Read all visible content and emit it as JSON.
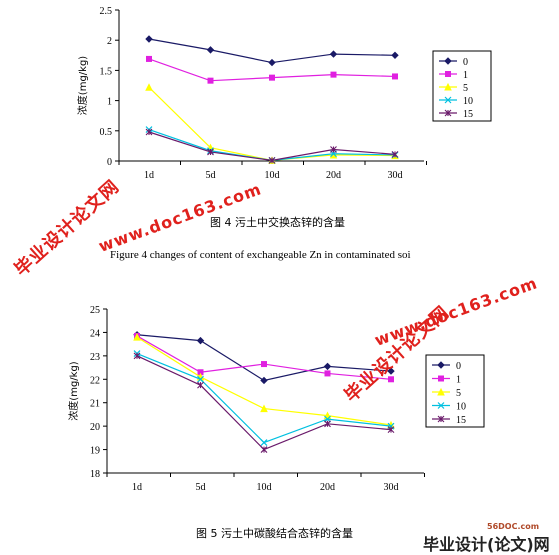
{
  "chart_data": [
    {
      "type": "line",
      "categories": [
        "1d",
        "5d",
        "10d",
        "20d",
        "30d"
      ],
      "ylabel": "浓度(mg/kg)",
      "ylim": [
        0,
        2.5
      ],
      "yticks": [
        "0",
        "0.5",
        "1",
        "1.5",
        "2",
        "2.5"
      ],
      "legend_position": "right",
      "series": [
        {
          "name": "0",
          "color": "#1a1a66",
          "marker": "diamond",
          "values": [
            2.02,
            1.84,
            1.63,
            1.77,
            1.75
          ]
        },
        {
          "name": "1",
          "color": "#e020e0",
          "marker": "square",
          "values": [
            1.69,
            1.33,
            1.38,
            1.43,
            1.4
          ]
        },
        {
          "name": "5",
          "color": "#ffff00",
          "marker": "triangle",
          "values": [
            1.22,
            0.22,
            0.01,
            0.1,
            0.09
          ]
        },
        {
          "name": "10",
          "color": "#00c0e0",
          "marker": "x",
          "values": [
            0.52,
            0.17,
            0.01,
            0.12,
            0.1
          ]
        },
        {
          "name": "15",
          "color": "#6a1a6a",
          "marker": "star",
          "values": [
            0.48,
            0.15,
            0.01,
            0.19,
            0.11
          ]
        }
      ]
    },
    {
      "type": "line",
      "categories": [
        "1d",
        "5d",
        "10d",
        "20d",
        "30d"
      ],
      "ylabel": "浓度(mg/kg)",
      "ylim": [
        18,
        25
      ],
      "yticks": [
        "18",
        "19",
        "20",
        "21",
        "22",
        "23",
        "24",
        "25"
      ],
      "legend_position": "right",
      "series": [
        {
          "name": "0",
          "color": "#1a1a66",
          "marker": "diamond",
          "values": [
            23.9,
            23.65,
            21.95,
            22.55,
            22.35
          ]
        },
        {
          "name": "1",
          "color": "#e020e0",
          "marker": "square",
          "values": [
            23.85,
            22.3,
            22.65,
            22.25,
            22.0
          ]
        },
        {
          "name": "5",
          "color": "#ffff00",
          "marker": "triangle",
          "values": [
            23.8,
            22.1,
            20.75,
            20.45,
            20.05
          ]
        },
        {
          "name": "10",
          "color": "#00c0e0",
          "marker": "x",
          "values": [
            23.1,
            22.0,
            19.3,
            20.3,
            20.0
          ]
        },
        {
          "name": "15",
          "color": "#6a1a6a",
          "marker": "star",
          "values": [
            23.0,
            21.75,
            19.0,
            20.1,
            19.85
          ]
        }
      ]
    }
  ],
  "captions": {
    "fig4_cn": "图 4  污土中交换态锌的含量",
    "fig4_en": "Figure 4 changes of content of exchangeable Zn in contaminated soi",
    "fig5_cn": "图 5  污土中碳酸结合态锌的含量"
  },
  "watermarks": {
    "brand_a": "毕业设计论文网",
    "url_a": "www.doc163.com",
    "brand_b": "毕业设计论文网",
    "url_b": "www.doc163.com",
    "footer_site": "56DOC.com",
    "footer_brand": "毕业设计(论文)网"
  }
}
